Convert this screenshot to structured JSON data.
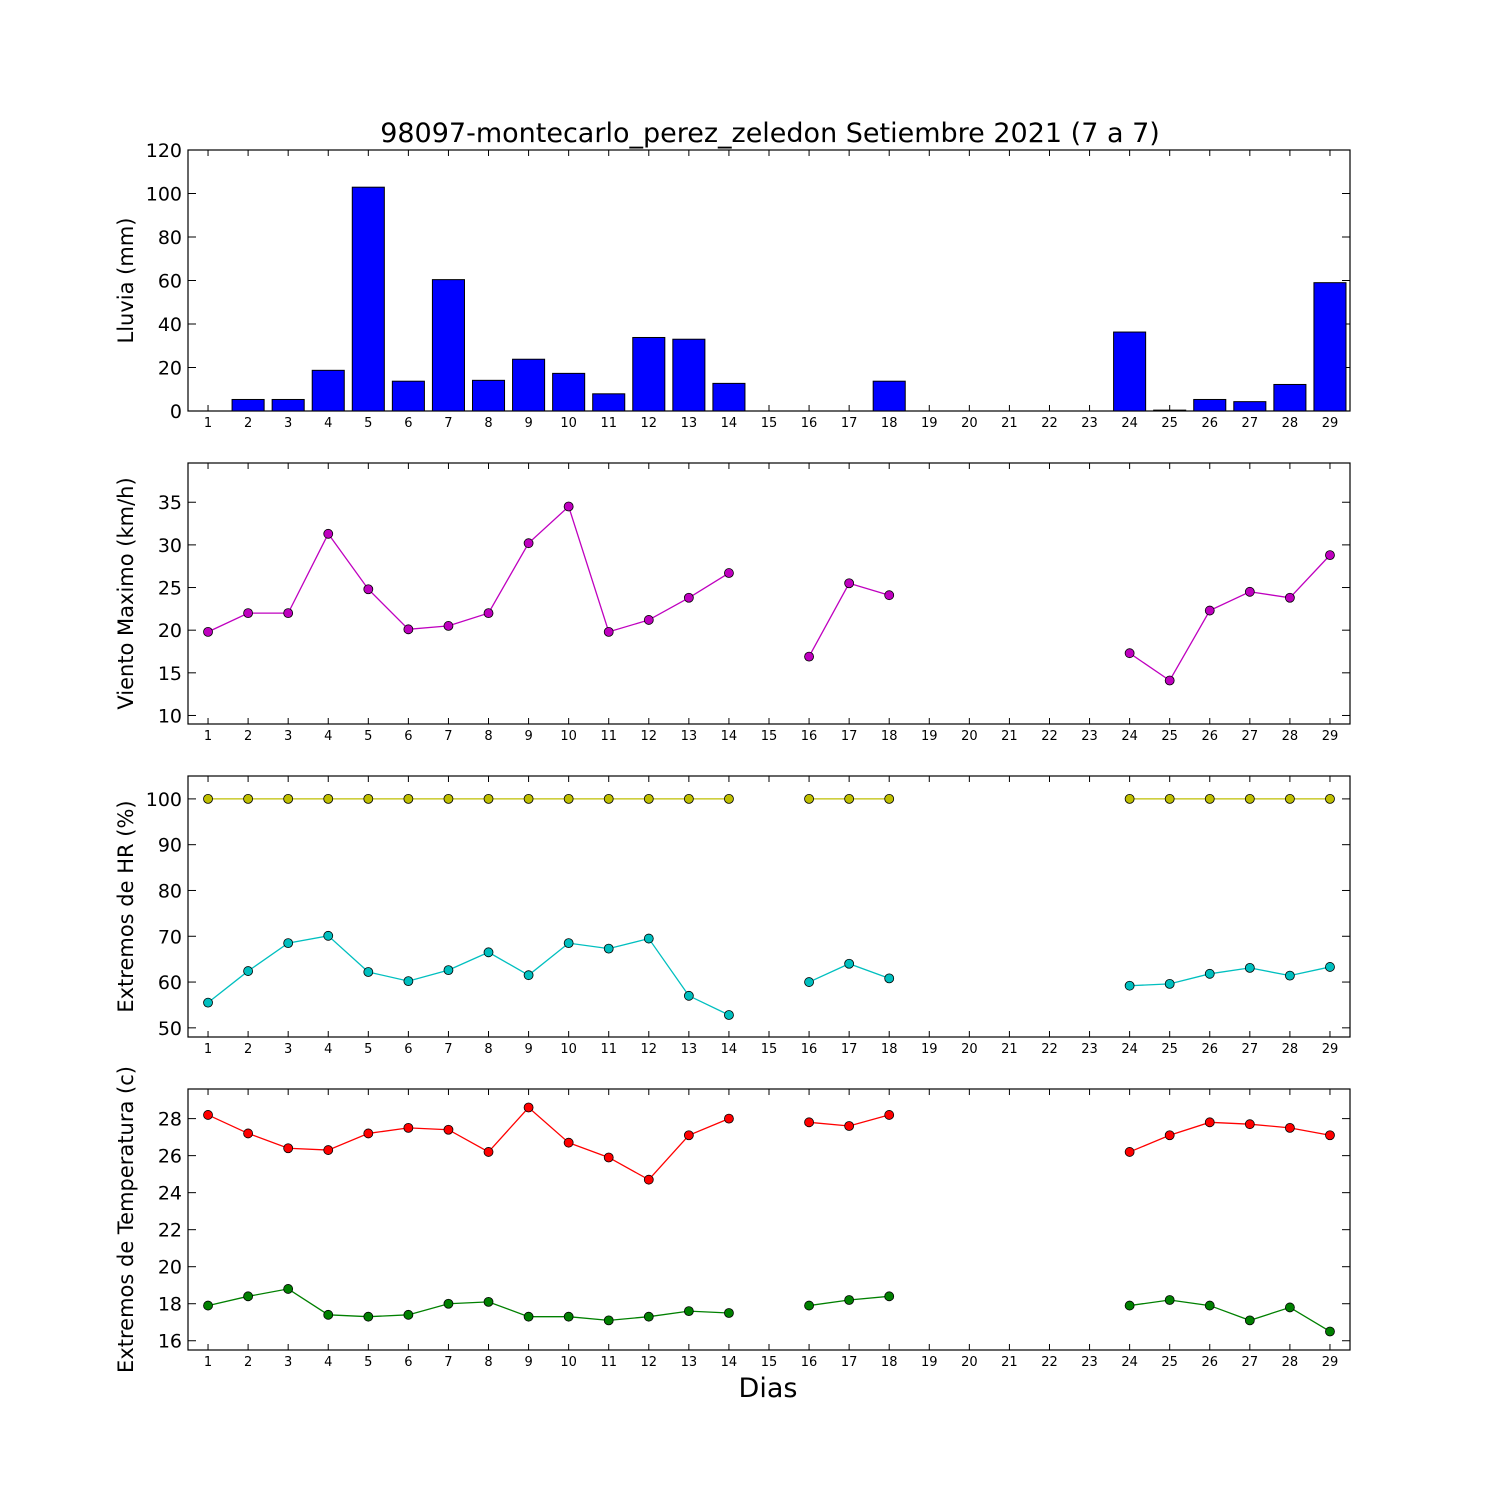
{
  "chart_data": {
    "title": "98097-montecarlo_perez_zeledon Setiembre 2021  (7 a 7)",
    "xlabel": "Dias",
    "days": [
      1,
      2,
      3,
      4,
      5,
      6,
      7,
      8,
      9,
      10,
      11,
      12,
      13,
      14,
      15,
      16,
      17,
      18,
      19,
      20,
      21,
      22,
      23,
      24,
      25,
      26,
      27,
      28,
      29
    ],
    "panels": [
      {
        "type": "bar",
        "ylabel": "Lluvia (mm)",
        "ylim": [
          0,
          120
        ],
        "yticks": [
          0,
          20,
          40,
          60,
          80,
          100,
          120
        ],
        "series": [
          {
            "color": "#0000ff",
            "values": [
              0,
              5.3,
              5.3,
              18.7,
              102.9,
              13.7,
              60.4,
              14.1,
              23.8,
              17.3,
              7.9,
              33.8,
              33.0,
              12.7,
              0,
              0,
              0,
              13.7,
              0,
              0,
              0,
              0,
              0,
              36.3,
              0.4,
              5.3,
              4.3,
              12.2,
              59.0
            ]
          }
        ]
      },
      {
        "type": "line",
        "ylabel": "Viento Maximo (km/h)",
        "ylim": [
          9,
          39.6
        ],
        "yticks": [
          10,
          15,
          20,
          25,
          30,
          35
        ],
        "series": [
          {
            "color": "#bf00bf",
            "values": [
              19.8,
              22.0,
              22.0,
              31.3,
              24.8,
              20.1,
              20.5,
              22.0,
              30.2,
              34.5,
              19.8,
              21.2,
              23.8,
              26.7,
              null,
              16.9,
              25.5,
              24.1,
              null,
              null,
              null,
              null,
              null,
              17.3,
              14.1,
              22.3,
              24.5,
              23.8,
              28.8
            ]
          }
        ]
      },
      {
        "type": "line",
        "ylabel": "Extremos de HR (%)",
        "ylim": [
          48,
          105
        ],
        "yticks": [
          50,
          60,
          70,
          80,
          90,
          100
        ],
        "series": [
          {
            "color": "#bfbf00",
            "values": [
              100,
              100,
              100,
              100,
              100,
              100,
              100,
              100,
              100,
              100,
              100,
              100,
              100,
              100,
              null,
              100,
              100,
              100,
              null,
              null,
              null,
              null,
              null,
              100,
              100,
              100,
              100,
              100,
              100
            ]
          },
          {
            "color": "#00bfbf",
            "values": [
              55.5,
              62.4,
              68.5,
              70.1,
              62.2,
              60.2,
              62.6,
              66.5,
              61.5,
              68.5,
              67.3,
              69.5,
              57.0,
              52.8,
              null,
              60.0,
              64.0,
              60.8,
              null,
              null,
              null,
              null,
              null,
              59.2,
              59.6,
              61.8,
              63.1,
              61.4,
              63.3
            ]
          }
        ]
      },
      {
        "type": "line",
        "ylabel": "Extremos de Temperatura (c)",
        "ylim": [
          15.5,
          29.6
        ],
        "yticks": [
          16,
          18,
          20,
          22,
          24,
          26,
          28
        ],
        "series": [
          {
            "color": "#ff0000",
            "values": [
              28.2,
              27.2,
              26.4,
              26.3,
              27.2,
              27.5,
              27.4,
              26.2,
              28.6,
              26.7,
              25.9,
              24.7,
              27.1,
              28.0,
              null,
              27.8,
              27.6,
              28.2,
              null,
              null,
              null,
              null,
              null,
              26.2,
              27.1,
              27.8,
              27.7,
              27.5,
              27.1
            ]
          },
          {
            "color": "#008000",
            "values": [
              17.9,
              18.4,
              18.8,
              17.4,
              17.3,
              17.4,
              18.0,
              18.1,
              17.3,
              17.3,
              17.1,
              17.3,
              17.6,
              17.5,
              null,
              17.9,
              18.2,
              18.4,
              null,
              null,
              null,
              null,
              null,
              17.9,
              18.2,
              17.9,
              17.1,
              17.8,
              16.5
            ]
          }
        ]
      }
    ]
  }
}
